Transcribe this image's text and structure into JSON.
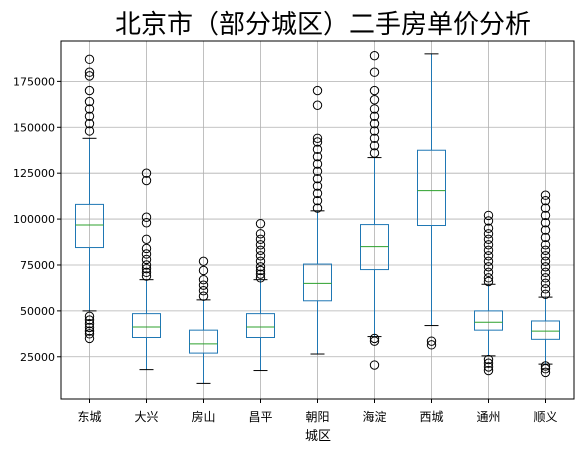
{
  "chart_data": {
    "type": "box",
    "title": "北京市（部分城区）二手房单价分析",
    "xlabel": "城区",
    "ylabel": "",
    "categories": [
      "东城",
      "大兴",
      "房山",
      "昌平",
      "朝阳",
      "海淀",
      "西城",
      "通州",
      "顺义"
    ],
    "ylim": [
      2000,
      197000
    ],
    "yticks": [
      25000,
      50000,
      75000,
      100000,
      125000,
      150000,
      175000
    ],
    "ytick_labels": [
      "25000",
      "50000",
      "75000",
      "100000",
      "125000",
      "150000",
      "175000"
    ],
    "grid": true,
    "colors": {
      "box": "#1f77b4",
      "median": "#2ca02c",
      "whisker": "#1f77b4",
      "cap": "#000000",
      "grid": "#b0b0b0",
      "axis": "#000000"
    },
    "boxes": [
      {
        "category": "东城",
        "whislo": 50000,
        "q1": 84500,
        "med": 96800,
        "q3": 108000,
        "whishi": 144000,
        "fliers": [
          35000,
          37500,
          39000,
          41000,
          43000,
          45000,
          47000,
          148000,
          152000,
          156000,
          160000,
          164000,
          170000,
          178000,
          180000,
          187000
        ]
      },
      {
        "category": "大兴",
        "whislo": 18000,
        "q1": 35500,
        "med": 41200,
        "q3": 48500,
        "whishi": 67000,
        "fliers": [
          69000,
          71000,
          73000,
          75000,
          78000,
          81000,
          84000,
          89000,
          98000,
          101000,
          121000,
          125000
        ]
      },
      {
        "category": "房山",
        "whislo": 10500,
        "q1": 27000,
        "med": 32000,
        "q3": 39500,
        "whishi": 56000,
        "fliers": [
          58000,
          61000,
          64000,
          67000,
          72000,
          77000
        ]
      },
      {
        "category": "昌平",
        "whislo": 17500,
        "q1": 35500,
        "med": 41200,
        "q3": 48500,
        "whishi": 67000,
        "fliers": [
          68000,
          70000,
          72000,
          74000,
          77000,
          80000,
          83000,
          86000,
          89000,
          92000,
          97500
        ]
      },
      {
        "category": "朝阳",
        "whislo": 26500,
        "q1": 55500,
        "med": 65000,
        "q3": 75500,
        "whishi": 104500,
        "fliers": [
          106000,
          110000,
          114000,
          118000,
          122000,
          126000,
          130000,
          134000,
          138000,
          142000,
          144000,
          162000,
          170000
        ]
      },
      {
        "category": "海淀",
        "whislo": 36000,
        "q1": 72500,
        "med": 85000,
        "q3": 97000,
        "whishi": 133500,
        "fliers": [
          20500,
          33500,
          35000,
          136000,
          140000,
          144000,
          148000,
          152000,
          156000,
          160000,
          165000,
          170000,
          180000,
          189000
        ]
      },
      {
        "category": "西城",
        "whislo": 42000,
        "q1": 96500,
        "med": 115500,
        "q3": 137500,
        "whishi": 190000,
        "fliers": [
          31500,
          33500
        ]
      },
      {
        "category": "通州",
        "whislo": 25500,
        "q1": 39500,
        "med": 43800,
        "q3": 50000,
        "whishi": 64500,
        "fliers": [
          17500,
          19500,
          21500,
          23500,
          66000,
          68000,
          71000,
          74000,
          77000,
          80000,
          83000,
          86000,
          89000,
          92000,
          95000,
          99000,
          102000
        ]
      },
      {
        "category": "顺义",
        "whislo": 21000,
        "q1": 34500,
        "med": 39000,
        "q3": 44500,
        "whishi": 57500,
        "fliers": [
          16500,
          18500,
          20000,
          59000,
          62000,
          65000,
          68000,
          71000,
          74000,
          77000,
          80000,
          83000,
          86000,
          90000,
          94000,
          98000,
          102000,
          106000,
          110000,
          113000
        ]
      }
    ]
  }
}
